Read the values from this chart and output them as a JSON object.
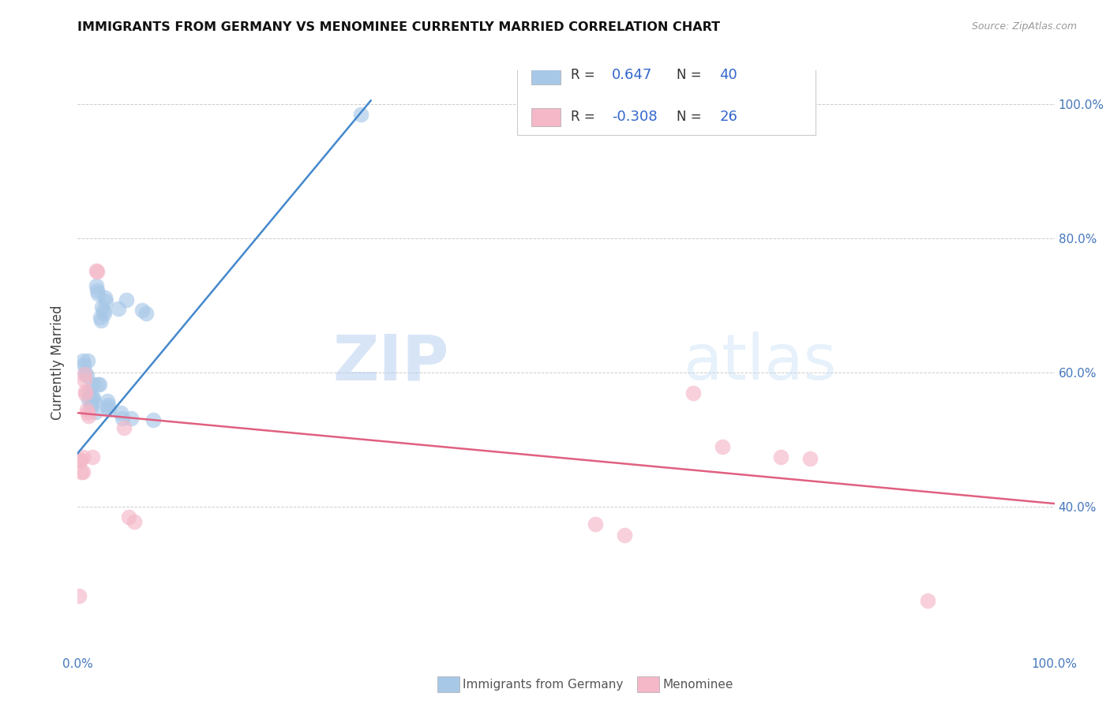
{
  "title": "IMMIGRANTS FROM GERMANY VS MENOMINEE CURRENTLY MARRIED CORRELATION CHART",
  "source": "Source: ZipAtlas.com",
  "ylabel": "Currently Married",
  "legend_blue_R": "0.647",
  "legend_blue_N": "40",
  "legend_pink_R": "-0.308",
  "legend_pink_N": "26",
  "blue_color": "#a8c8e8",
  "pink_color": "#f4b8c8",
  "blue_line_color": "#4488cc",
  "pink_line_color": "#e06080",
  "watermark_zip": "ZIP",
  "watermark_atlas": "atlas",
  "xlim": [
    0,
    1.0
  ],
  "ylim": [
    0.18,
    1.05
  ],
  "blue_scatter": [
    [
      0.005,
      0.618
    ],
    [
      0.006,
      0.612
    ],
    [
      0.008,
      0.6
    ],
    [
      0.009,
      0.595
    ],
    [
      0.01,
      0.618
    ],
    [
      0.011,
      0.56
    ],
    [
      0.012,
      0.565
    ],
    [
      0.012,
      0.572
    ],
    [
      0.013,
      0.548
    ],
    [
      0.014,
      0.552
    ],
    [
      0.015,
      0.562
    ],
    [
      0.016,
      0.563
    ],
    [
      0.016,
      0.582
    ],
    [
      0.017,
      0.558
    ],
    [
      0.018,
      0.542
    ],
    [
      0.019,
      0.73
    ],
    [
      0.02,
      0.722
    ],
    [
      0.021,
      0.718
    ],
    [
      0.021,
      0.582
    ],
    [
      0.022,
      0.582
    ],
    [
      0.023,
      0.682
    ],
    [
      0.024,
      0.678
    ],
    [
      0.025,
      0.698
    ],
    [
      0.026,
      0.692
    ],
    [
      0.027,
      0.688
    ],
    [
      0.028,
      0.712
    ],
    [
      0.029,
      0.706
    ],
    [
      0.03,
      0.558
    ],
    [
      0.03,
      0.548
    ],
    [
      0.031,
      0.552
    ],
    [
      0.032,
      0.545
    ],
    [
      0.042,
      0.695
    ],
    [
      0.044,
      0.54
    ],
    [
      0.046,
      0.532
    ],
    [
      0.05,
      0.708
    ],
    [
      0.055,
      0.532
    ],
    [
      0.066,
      0.693
    ],
    [
      0.07,
      0.688
    ],
    [
      0.077,
      0.53
    ],
    [
      0.29,
      0.985
    ]
  ],
  "pink_scatter": [
    [
      0.002,
      0.47
    ],
    [
      0.003,
      0.47
    ],
    [
      0.004,
      0.452
    ],
    [
      0.005,
      0.474
    ],
    [
      0.005,
      0.452
    ],
    [
      0.007,
      0.598
    ],
    [
      0.007,
      0.588
    ],
    [
      0.008,
      0.572
    ],
    [
      0.008,
      0.568
    ],
    [
      0.009,
      0.545
    ],
    [
      0.01,
      0.54
    ],
    [
      0.011,
      0.535
    ],
    [
      0.015,
      0.475
    ],
    [
      0.019,
      0.752
    ],
    [
      0.02,
      0.75
    ],
    [
      0.001,
      0.268
    ],
    [
      0.047,
      0.518
    ],
    [
      0.052,
      0.385
    ],
    [
      0.058,
      0.378
    ],
    [
      0.63,
      0.57
    ],
    [
      0.66,
      0.49
    ],
    [
      0.72,
      0.475
    ],
    [
      0.75,
      0.472
    ],
    [
      0.53,
      0.375
    ],
    [
      0.56,
      0.358
    ],
    [
      0.87,
      0.26
    ]
  ],
  "blue_trendline_x": [
    0.0,
    0.3
  ],
  "blue_trendline_y": [
    0.48,
    1.005
  ],
  "pink_trendline_x": [
    0.0,
    1.0
  ],
  "pink_trendline_y": [
    0.54,
    0.405
  ]
}
